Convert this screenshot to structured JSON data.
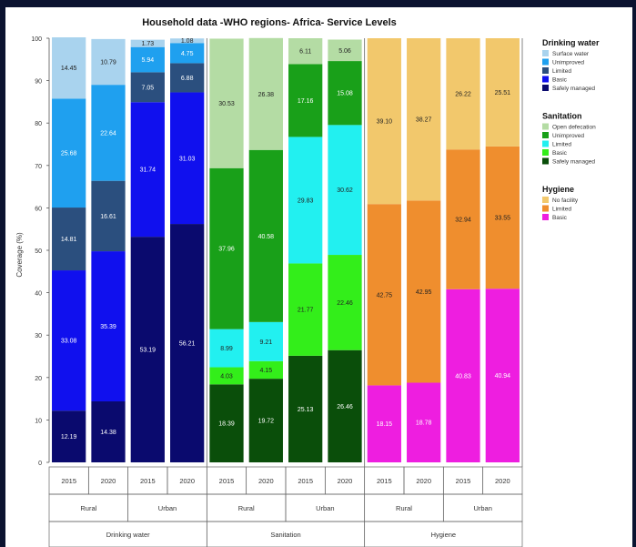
{
  "chart_data": {
    "type": "bar",
    "stacked": true,
    "title": "Household data -WHO regions- Africa- Service Levels",
    "ylabel": "Coverage (%)",
    "ylim": [
      0,
      100
    ],
    "yticks": [
      0,
      10,
      20,
      30,
      40,
      50,
      60,
      70,
      80,
      90,
      100
    ],
    "groups": [
      {
        "name": "Drinking water",
        "levels": [
          "Safely managed",
          "Basic",
          "Limited",
          "Unimproved",
          "Surface water"
        ],
        "colors": [
          "#0a0a6e",
          "#1010ee",
          "#2b4f7e",
          "#1fa0ef",
          "#a9d3ee"
        ],
        "bars": [
          {
            "area": "Rural",
            "year": "2015",
            "values": [
              12.19,
              33.08,
              14.81,
              25.68,
              14.45
            ]
          },
          {
            "area": "Rural",
            "year": "2020",
            "values": [
              14.38,
              35.39,
              16.61,
              22.64,
              10.79
            ]
          },
          {
            "area": "Urban",
            "year": "2015",
            "values": [
              53.19,
              31.74,
              7.05,
              5.94,
              1.73
            ]
          },
          {
            "area": "Urban",
            "year": "2020",
            "values": [
              56.21,
              31.03,
              6.88,
              4.75,
              1.08
            ]
          }
        ]
      },
      {
        "name": "Sanitation",
        "levels": [
          "Safely managed",
          "Basic",
          "Limited",
          "Unimproved",
          "Open defecation"
        ],
        "colors": [
          "#0a4e0a",
          "#33ee1a",
          "#22f0f0",
          "#19a019",
          "#b4dca4"
        ],
        "bars": [
          {
            "area": "Rural",
            "year": "2015",
            "values": [
              18.39,
              4.03,
              8.99,
              37.96,
              30.53
            ]
          },
          {
            "area": "Rural",
            "year": "2020",
            "values": [
              19.72,
              4.15,
              9.21,
              40.58,
              26.38
            ]
          },
          {
            "area": "Urban",
            "year": "2015",
            "values": [
              25.13,
              21.77,
              29.83,
              17.16,
              6.11
            ]
          },
          {
            "area": "Urban",
            "year": "2020",
            "values": [
              26.46,
              22.46,
              30.62,
              15.08,
              5.06
            ]
          }
        ]
      },
      {
        "name": "Hygiene",
        "levels": [
          "Basic",
          "Limited",
          "No facility"
        ],
        "colors": [
          "#ee1ee0",
          "#ef8e2e",
          "#f2c86c"
        ],
        "bars": [
          {
            "area": "Rural",
            "year": "2015",
            "values": [
              18.15,
              42.75,
              39.1
            ]
          },
          {
            "area": "Rural",
            "year": "2020",
            "values": [
              18.78,
              42.95,
              38.27
            ]
          },
          {
            "area": "Urban",
            "year": "2015",
            "values": [
              40.83,
              32.94,
              26.22
            ]
          },
          {
            "area": "Urban",
            "year": "2020",
            "values": [
              40.94,
              33.55,
              25.51
            ]
          }
        ]
      }
    ],
    "legend": [
      {
        "title": "Drinking water",
        "items": [
          {
            "label": "Surface water",
            "color": "#a9d3ee"
          },
          {
            "label": "Unimproved",
            "color": "#1fa0ef"
          },
          {
            "label": "Limited",
            "color": "#2b4f7e"
          },
          {
            "label": "Basic",
            "color": "#1010ee"
          },
          {
            "label": "Safely managed",
            "color": "#0a0a6e"
          }
        ]
      },
      {
        "title": "Sanitation",
        "items": [
          {
            "label": "Open defecation",
            "color": "#b4dca4"
          },
          {
            "label": "Unimproved",
            "color": "#19a019"
          },
          {
            "label": "Limited",
            "color": "#22f0f0"
          },
          {
            "label": "Basic",
            "color": "#33ee1a"
          },
          {
            "label": "Safely managed",
            "color": "#0a4e0a"
          }
        ]
      },
      {
        "title": "Hygiene",
        "items": [
          {
            "label": "No facility",
            "color": "#f2c86c"
          },
          {
            "label": "Limited",
            "color": "#ef8e2e"
          },
          {
            "label": "Basic",
            "color": "#ee1ee0"
          }
        ]
      }
    ],
    "legend_position": "right",
    "grid": false
  }
}
